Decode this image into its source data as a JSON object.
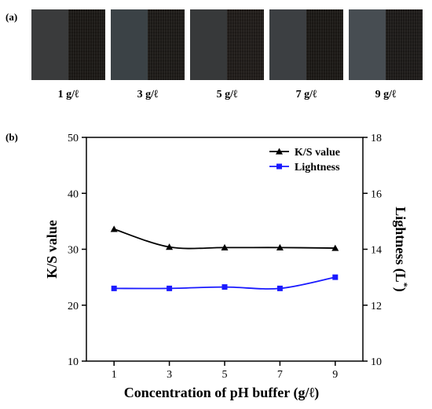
{
  "panel_a_label": "(a)",
  "panel_b_label": "(b)",
  "swatches": [
    {
      "label": "1 g/ℓ",
      "left_color": "#3a3b3c",
      "right_color": "#1d1a17"
    },
    {
      "label": "3 g/ℓ",
      "left_color": "#3b4246",
      "right_color": "#1f1c19"
    },
    {
      "label": "5 g/ℓ",
      "left_color": "#37393a",
      "right_color": "#221e1b"
    },
    {
      "label": "7 g/ℓ",
      "left_color": "#3c3f42",
      "right_color": "#1d1a17"
    },
    {
      "label": "9 g/ℓ",
      "left_color": "#474d52",
      "right_color": "#1f1c1a"
    }
  ],
  "chart_data": {
    "type": "line",
    "x": [
      1,
      3,
      5,
      7,
      9
    ],
    "xlabel": "Concentration of pH buffer (g/ℓ)",
    "x_ticks": [
      "1",
      "3",
      "5",
      "7",
      "9"
    ],
    "ylabel_left": "K/S value",
    "ylim_left": [
      10,
      50
    ],
    "y_ticks_left": [
      "10",
      "20",
      "30",
      "40",
      "50"
    ],
    "ylabel_right_main": "Lightness (L",
    "ylabel_right_sup": "*",
    "ylabel_right_end": ")",
    "ylim_right": [
      10,
      18
    ],
    "y_ticks_right": [
      "10",
      "12",
      "14",
      "16",
      "18"
    ],
    "legend_position": "top-right",
    "series": [
      {
        "name": "K/S value",
        "axis": "left",
        "color": "#000000",
        "marker": "triangle",
        "values": [
          33.6,
          30.4,
          30.3,
          30.3,
          30.2
        ]
      },
      {
        "name": "Lightness",
        "axis": "right",
        "color": "#1a1aff",
        "marker": "square",
        "values": [
          12.6,
          12.6,
          12.65,
          12.6,
          13.0
        ]
      }
    ]
  }
}
